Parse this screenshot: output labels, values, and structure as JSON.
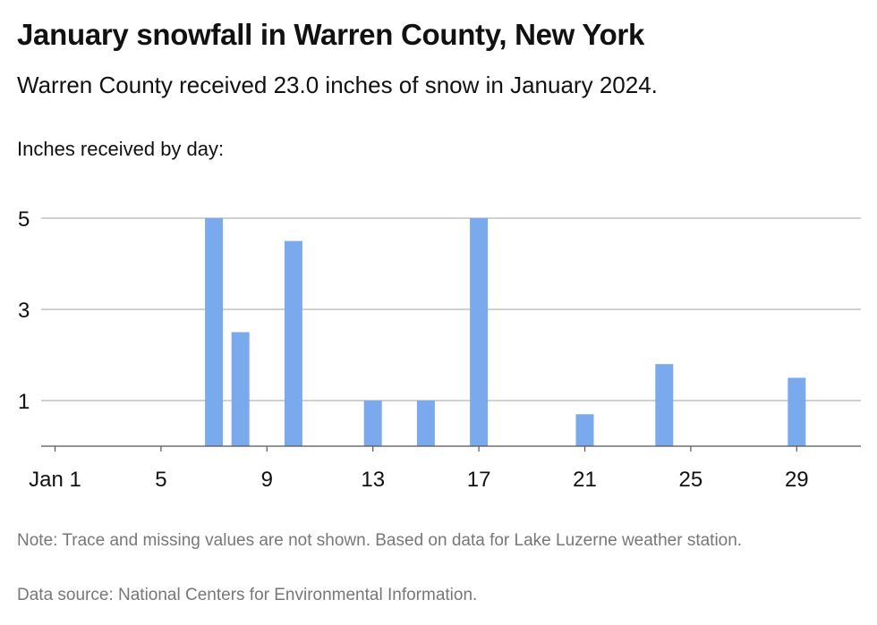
{
  "title": "January snowfall in Warren County, New York",
  "subtitle": "Warren County received 23.0 inches of snow in January 2024.",
  "note": "Note: Trace and missing values are not shown. Based on data for Lake Luzerne weather station.",
  "source": "Data source: National Centers for Environmental Information.",
  "bar_color": "#7aaaed",
  "chart_data": {
    "type": "bar",
    "title": "January snowfall in Warren County, New York",
    "subtitle": "Warren County received 23.0 inches of snow in January 2024.",
    "ylabel": "Inches received by day:",
    "xlabel": "",
    "x": [
      7,
      8,
      10,
      13,
      15,
      17,
      21,
      24,
      29
    ],
    "values": [
      5.0,
      2.5,
      4.5,
      1.0,
      1.0,
      5.0,
      0.7,
      1.8,
      1.5
    ],
    "xlim": [
      0.4,
      31.6
    ],
    "ylim": [
      0,
      5
    ],
    "yticks": [
      1,
      3,
      5
    ],
    "xticks": [
      1,
      5,
      9,
      13,
      17,
      21,
      25,
      29
    ],
    "xtick_labels": [
      "Jan 1",
      "5",
      "9",
      "13",
      "17",
      "21",
      "25",
      "29"
    ],
    "grid": true
  }
}
